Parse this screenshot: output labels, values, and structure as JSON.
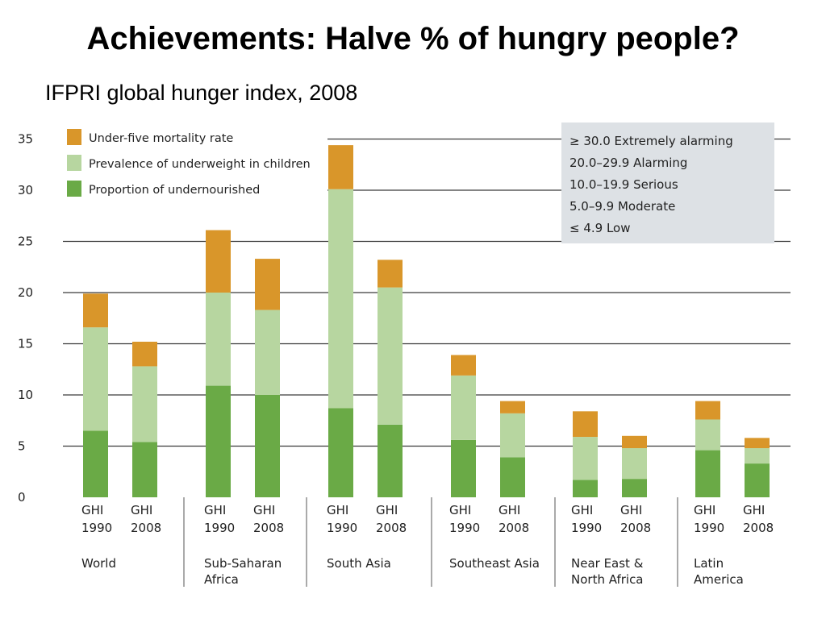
{
  "title": "Achievements: Halve % of hungry people?",
  "subtitle": "IFPRI global hunger index, 2008",
  "colors": {
    "mortality": "#d9962a",
    "underweight": "#b7d6a0",
    "undernourished": "#6aaa46",
    "grid": "#3a3a3a",
    "severity_box": "#dde1e5"
  },
  "severity_scale": [
    "≥ 30.0 Extremely alarming",
    "20.0–29.9 Alarming",
    "10.0–19.9 Serious",
    "5.0–9.9 Moderate",
    "≤ 4.9 Low"
  ],
  "chart_data": {
    "type": "bar",
    "stacked": true,
    "ylim": [
      0,
      35
    ],
    "yticks": [
      "0",
      "5",
      "10",
      "15",
      "20",
      "25",
      "30",
      "35"
    ],
    "grid": true,
    "legend_position": "top-left",
    "bar_labels": [
      "GHI 1990",
      "GHI 2008"
    ],
    "regions": [
      "World",
      "Sub-Saharan Africa",
      "South Asia",
      "Southeast Asia",
      "Near East & North Africa",
      "Latin America"
    ],
    "categories": [
      "World GHI 1990",
      "World GHI 2008",
      "Sub-Saharan Africa GHI 1990",
      "Sub-Saharan Africa GHI 2008",
      "South Asia GHI 1990",
      "South Asia GHI 2008",
      "Southeast Asia GHI 1990",
      "Southeast Asia GHI 2008",
      "Near East & North Africa GHI 1990",
      "Near East & North Africa GHI 2008",
      "Latin America GHI 1990",
      "Latin America GHI 2008"
    ],
    "series": [
      {
        "name": "Proportion of undernourished",
        "values": [
          6.5,
          5.4,
          10.9,
          10.0,
          8.7,
          7.1,
          5.6,
          3.9,
          1.7,
          1.8,
          4.6,
          3.3
        ]
      },
      {
        "name": "Prevalence of underweight in children",
        "values": [
          10.1,
          7.4,
          9.1,
          8.3,
          21.4,
          13.4,
          6.3,
          4.3,
          4.2,
          3.0,
          3.0,
          1.5
        ]
      },
      {
        "name": "Under-five mortality rate",
        "values": [
          3.3,
          2.4,
          6.1,
          5.0,
          4.3,
          2.7,
          2.0,
          1.2,
          2.5,
          1.2,
          1.8,
          1.0
        ]
      }
    ]
  }
}
